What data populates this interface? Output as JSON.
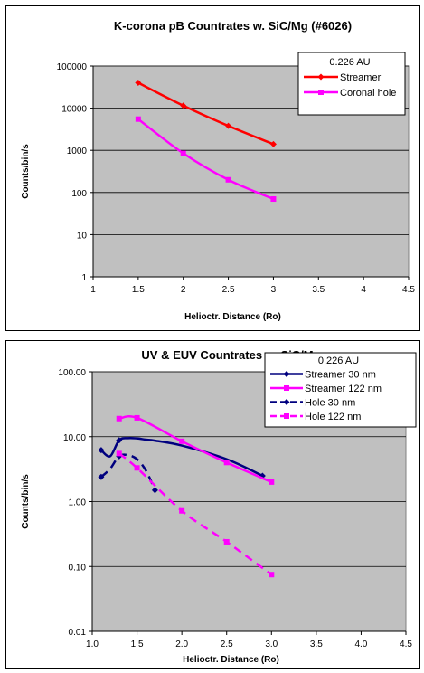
{
  "chart_data": [
    {
      "type": "line",
      "title": "K-corona pB Countrates w. SiC/Mg (#6026)",
      "xlabel": "Helioctr. Distance (Ro)",
      "ylabel": "Counts/bin/s",
      "xlim": [
        1,
        4.5
      ],
      "ylim": [
        1,
        100000
      ],
      "yscale": "log",
      "grid": true,
      "legend_position": "top-right",
      "legend_title": "0.226 AU",
      "xticks": [
        "1",
        "1.5",
        "2",
        "2.5",
        "3",
        "3.5",
        "4",
        "4.5"
      ],
      "yticks": [
        "1",
        "10",
        "100",
        "1000",
        "10000",
        "100000"
      ],
      "series": [
        {
          "name": "Streamer",
          "color": "#ff0000",
          "marker": "diamond",
          "dash": "solid",
          "x": [
            1.5,
            2.0,
            2.5,
            3.0
          ],
          "y": [
            40000,
            11500,
            3800,
            1400
          ]
        },
        {
          "name": "Coronal hole",
          "color": "#ff00ff",
          "marker": "square",
          "dash": "solid",
          "x": [
            1.5,
            2.0,
            2.5,
            3.0
          ],
          "y": [
            5500,
            850,
            200,
            70
          ]
        }
      ]
    },
    {
      "type": "line",
      "title": "UV & EUV Countrates w. SiC/Mg",
      "xlabel": "Helioctr. Distance (Ro)",
      "ylabel": "Counts/bin/s",
      "xlim": [
        1.0,
        4.5
      ],
      "ylim": [
        0.01,
        100
      ],
      "yscale": "log",
      "grid": true,
      "legend_position": "top-right",
      "legend_title": "0.226 AU",
      "xticks": [
        "1.0",
        "1.5",
        "2.0",
        "2.5",
        "3.0",
        "3.5",
        "4.0",
        "4.5"
      ],
      "yticks": [
        "0.01",
        "0.10",
        "1.00",
        "10.00",
        "100.00"
      ],
      "series": [
        {
          "name": "Streamer 30 nm",
          "color": "#00007f",
          "marker": "diamond",
          "dash": "solid",
          "x": [
            1.1,
            1.2,
            1.3,
            1.4,
            1.5,
            1.6,
            1.7,
            2.0,
            2.5,
            2.9
          ],
          "y": [
            6.2,
            5.0,
            8.8,
            9.5,
            9.4,
            9.0,
            8.7,
            7.3,
            4.5,
            2.5
          ]
        },
        {
          "name": "Streamer 122 nm",
          "color": "#ff00ff",
          "marker": "square",
          "dash": "solid",
          "x": [
            1.3,
            1.5,
            2.0,
            2.5,
            3.0
          ],
          "y": [
            19,
            19.5,
            8.5,
            4.0,
            2.0
          ]
        },
        {
          "name": "Hole 30 nm",
          "color": "#00007f",
          "marker": "diamond",
          "dash": "dashed",
          "x": [
            1.1,
            1.2,
            1.3,
            1.4,
            1.5,
            1.6,
            1.7
          ],
          "y": [
            2.4,
            3.2,
            5.0,
            5.2,
            4.5,
            3.0,
            1.5
          ]
        },
        {
          "name": "Hole 122 nm",
          "color": "#ff00ff",
          "marker": "square",
          "dash": "dashed",
          "x": [
            1.3,
            1.5,
            2.0,
            2.5,
            3.0
          ],
          "y": [
            5.5,
            3.3,
            0.72,
            0.24,
            0.075
          ]
        }
      ]
    }
  ]
}
